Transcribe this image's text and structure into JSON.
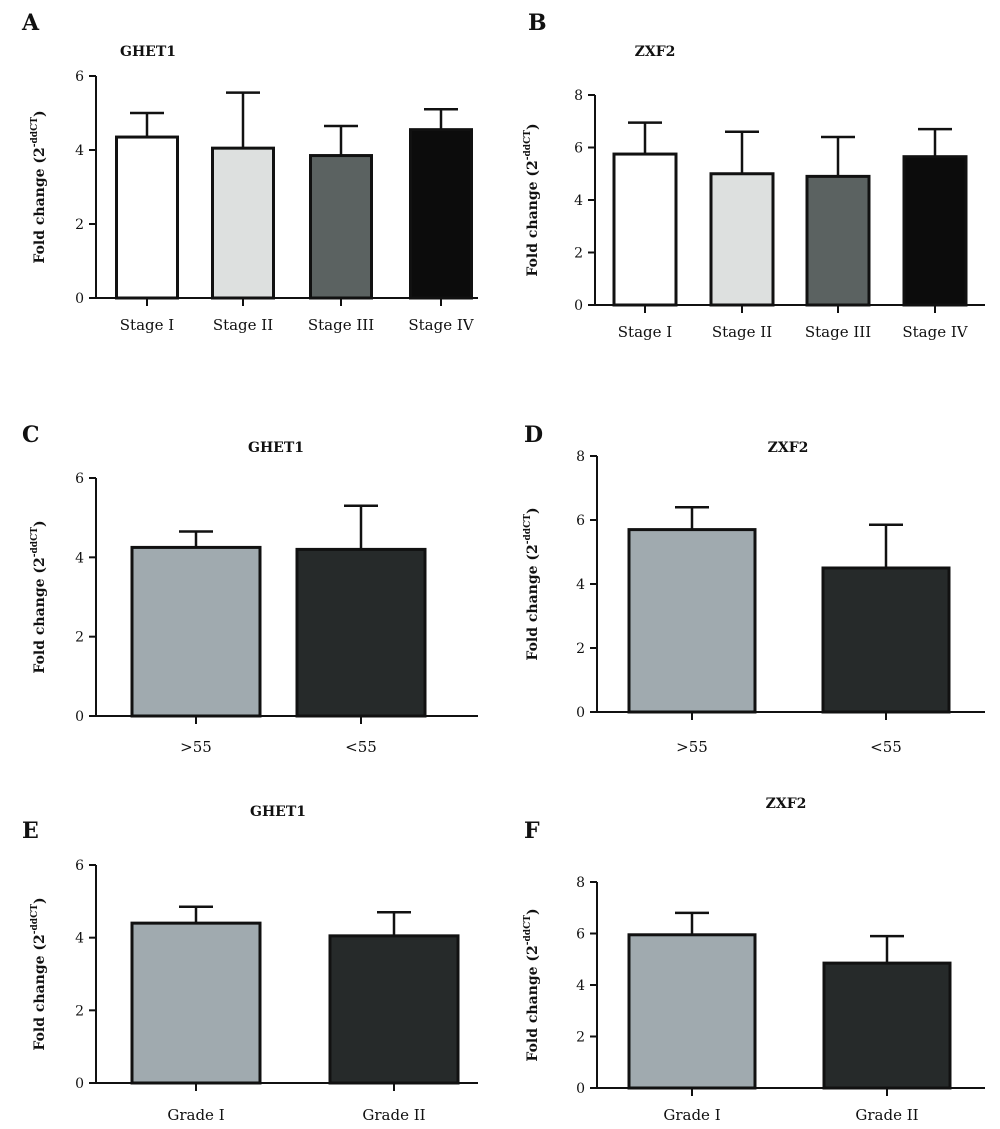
{
  "figure": {
    "y_label_main": "Fold change (2",
    "y_label_sup": "-ddCT",
    "y_label_close": ")",
    "panels": [
      {
        "letter": "A",
        "chart_data": {
          "type": "bar",
          "title": "GHET1",
          "categories": [
            "Stage I",
            "Stage II",
            "Stage III",
            "Stage IV"
          ],
          "values": [
            4.35,
            4.05,
            3.85,
            4.55
          ],
          "error_upper": [
            5.0,
            5.55,
            4.65,
            5.1
          ],
          "ylim": [
            0,
            6
          ],
          "yticks": [
            0,
            2,
            4,
            6
          ],
          "colors": [
            "#ffffff",
            "#dde0df",
            "#5b6261",
            "#0c0c0c"
          ]
        }
      },
      {
        "letter": "B",
        "chart_data": {
          "type": "bar",
          "title": "ZXF2",
          "categories": [
            "Stage I",
            "Stage II",
            "Stage III",
            "Stage IV"
          ],
          "values": [
            5.75,
            5.0,
            4.9,
            5.65
          ],
          "error_upper": [
            6.95,
            6.6,
            6.4,
            6.7
          ],
          "ylim": [
            0,
            8
          ],
          "yticks": [
            0,
            2,
            4,
            6,
            8
          ],
          "colors": [
            "#ffffff",
            "#dde0df",
            "#5b6261",
            "#0c0c0c"
          ]
        }
      },
      {
        "letter": "C",
        "chart_data": {
          "type": "bar",
          "title": "GHET1",
          "categories": [
            ">55",
            "<55"
          ],
          "values": [
            4.25,
            4.2
          ],
          "error_upper": [
            4.65,
            5.3
          ],
          "ylim": [
            0,
            6
          ],
          "yticks": [
            0,
            2,
            4,
            6
          ],
          "colors": [
            "#a0aaaf",
            "#262a2a"
          ]
        }
      },
      {
        "letter": "D",
        "chart_data": {
          "type": "bar",
          "title": "ZXF2",
          "categories": [
            ">55",
            "<55"
          ],
          "values": [
            5.7,
            4.5
          ],
          "error_upper": [
            6.4,
            5.85
          ],
          "ylim": [
            0,
            8
          ],
          "yticks": [
            0,
            2,
            4,
            6,
            8
          ],
          "colors": [
            "#a0aaaf",
            "#262a2a"
          ]
        }
      },
      {
        "letter": "E",
        "chart_data": {
          "type": "bar",
          "title": "GHET1",
          "categories": [
            "Grade I",
            "Grade II"
          ],
          "values": [
            4.4,
            4.05
          ],
          "error_upper": [
            4.85,
            4.7
          ],
          "ylim": [
            0,
            6
          ],
          "yticks": [
            0,
            2,
            4,
            6
          ],
          "colors": [
            "#a0aaaf",
            "#262a2a"
          ]
        }
      },
      {
        "letter": "F",
        "chart_data": {
          "type": "bar",
          "title": "ZXF2",
          "categories": [
            "Grade I",
            "Grade II"
          ],
          "values": [
            5.95,
            4.85
          ],
          "error_upper": [
            6.8,
            5.9
          ],
          "ylim": [
            0,
            8
          ],
          "yticks": [
            0,
            2,
            4,
            6,
            8
          ],
          "colors": [
            "#a0aaaf",
            "#262a2a"
          ]
        }
      }
    ]
  }
}
